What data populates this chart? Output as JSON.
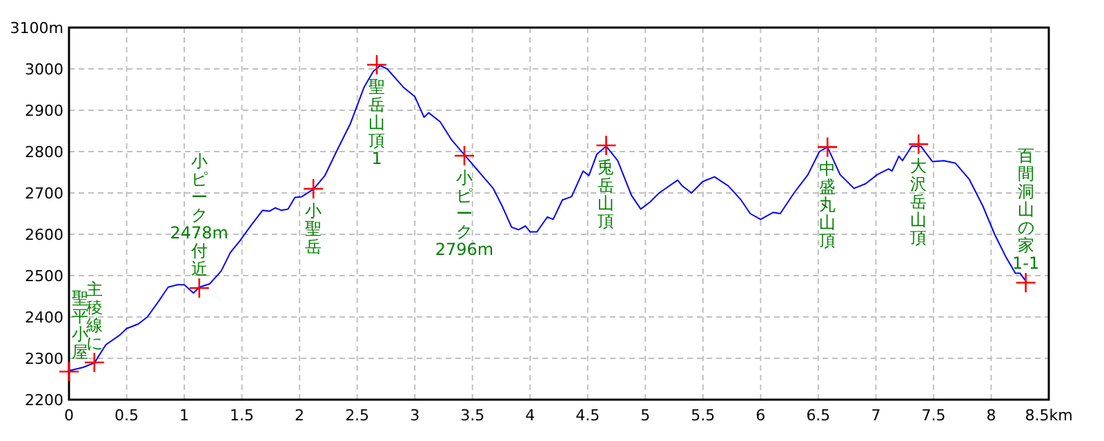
{
  "chart_data": {
    "type": "line",
    "xlim": [
      0,
      8.5
    ],
    "ylim": [
      2200,
      3100
    ],
    "xticks": [
      0,
      0.5,
      1,
      1.5,
      2,
      2.5,
      3,
      3.5,
      4,
      4.5,
      5,
      5.5,
      6,
      6.5,
      7,
      7.5,
      8,
      {
        "value": 8.5,
        "label": "8.5km"
      }
    ],
    "yticks": [
      2200,
      2300,
      2400,
      2500,
      2600,
      2700,
      2800,
      2900,
      3000,
      {
        "value": 3100,
        "label": "3100m"
      }
    ],
    "grid": true,
    "series": [
      {
        "type": "line",
        "color": "#0000ff",
        "marker": "none",
        "x": [
          0,
          0.12,
          0.22,
          0.32,
          0.44,
          0.5,
          0.6,
          0.68,
          0.78,
          0.86,
          0.94,
          1.0,
          1.08,
          1.13,
          1.22,
          1.32,
          1.4,
          1.48,
          1.58,
          1.68,
          1.74,
          1.79,
          1.84,
          1.9,
          1.96,
          2.02,
          2.12,
          2.22,
          2.32,
          2.44,
          2.56,
          2.64,
          2.7,
          2.76,
          2.9,
          3.0,
          3.08,
          3.12,
          3.22,
          3.32,
          3.44,
          3.56,
          3.68,
          3.76,
          3.84,
          3.9,
          3.96,
          4.0,
          4.06,
          4.15,
          4.2,
          4.28,
          4.36,
          4.46,
          4.51,
          4.58,
          4.66,
          4.76,
          4.88,
          4.96,
          5.04,
          5.12,
          5.28,
          5.32,
          5.4,
          5.5,
          5.6,
          5.72,
          5.83,
          5.91,
          6.0,
          6.11,
          6.17,
          6.29,
          6.41,
          6.51,
          6.58,
          6.69,
          6.81,
          6.91,
          7.01,
          7.11,
          7.14,
          7.2,
          7.23,
          7.31,
          7.39,
          7.49,
          7.59,
          7.69,
          7.81,
          7.93,
          8.03,
          8.13,
          8.21,
          8.25,
          8.31
        ],
        "values": [
          2270,
          2278,
          2289,
          2333,
          2356,
          2372,
          2383,
          2400,
          2439,
          2472,
          2478,
          2478,
          2458,
          2472,
          2480,
          2511,
          2556,
          2583,
          2622,
          2658,
          2656,
          2664,
          2658,
          2661,
          2689,
          2691,
          2709,
          2742,
          2800,
          2867,
          2956,
          2994,
          3008,
          3000,
          2956,
          2933,
          2883,
          2894,
          2872,
          2828,
          2789,
          2750,
          2711,
          2667,
          2617,
          2611,
          2620,
          2606,
          2606,
          2642,
          2636,
          2683,
          2691,
          2753,
          2742,
          2794,
          2813,
          2778,
          2694,
          2661,
          2678,
          2700,
          2731,
          2717,
          2700,
          2728,
          2739,
          2717,
          2683,
          2650,
          2636,
          2653,
          2650,
          2700,
          2744,
          2800,
          2811,
          2744,
          2711,
          2722,
          2744,
          2758,
          2753,
          2789,
          2778,
          2813,
          2813,
          2776,
          2778,
          2772,
          2733,
          2667,
          2600,
          2544,
          2506,
          2506,
          2483
        ]
      },
      {
        "type": "scatter",
        "color": "#ff0000",
        "marker": "cross",
        "x": [
          0,
          0.22,
          1.13,
          2.12,
          2.67,
          3.43,
          4.66,
          6.58,
          7.37,
          8.3
        ],
        "values": [
          2268,
          2290,
          2470,
          2710,
          3010,
          2790,
          2815,
          2811,
          2818,
          2483
        ]
      }
    ],
    "annotations": [
      {
        "text": "聖平小屋",
        "x": 0,
        "y": 2268
      },
      {
        "text": "主稜線に",
        "x": 0.22,
        "y": 2290
      },
      {
        "text": "小ピーク2478m付近",
        "x": 1.13,
        "y": 2470
      },
      {
        "text": "小聖岳",
        "x": 2.12,
        "y": 2710
      },
      {
        "text": "聖岳山頂1",
        "x": 2.67,
        "y": 3010
      },
      {
        "text": "小ピーク2796m",
        "x": 3.43,
        "y": 2790
      },
      {
        "text": "兎岳山頂",
        "x": 4.66,
        "y": 2815
      },
      {
        "text": "中盛丸山頂",
        "x": 6.58,
        "y": 2811
      },
      {
        "text": "大沢岳山頂",
        "x": 7.37,
        "y": 2818
      },
      {
        "text": "百間洞山の家1-1",
        "x": 8.3,
        "y": 2483
      }
    ]
  }
}
